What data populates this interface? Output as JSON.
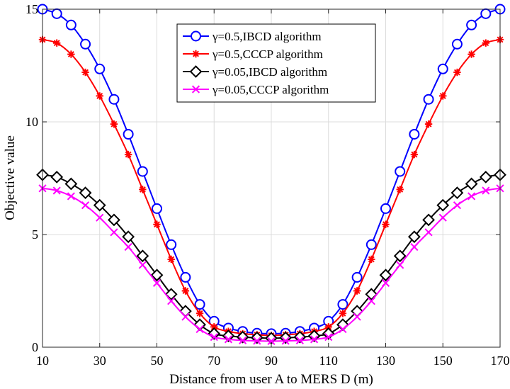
{
  "chart_data": {
    "type": "line",
    "title": "",
    "xlabel": "Distance from user A to MERS D (m)",
    "ylabel": "Objective value",
    "xlim": [
      10,
      170
    ],
    "ylim": [
      0,
      15
    ],
    "xticks": [
      10,
      30,
      50,
      70,
      90,
      110,
      130,
      150,
      170
    ],
    "yticks": [
      0,
      5,
      10,
      15
    ],
    "grid": true,
    "legend_position": "top-right",
    "x": [
      10,
      15,
      20,
      25,
      30,
      35,
      40,
      45,
      50,
      55,
      60,
      65,
      70,
      75,
      80,
      85,
      90,
      95,
      100,
      105,
      110,
      115,
      120,
      125,
      130,
      135,
      140,
      145,
      150,
      155,
      160,
      165,
      170
    ],
    "series": [
      {
        "name": "γ=0.5,IBCD algorithm",
        "color": "#0000ff",
        "marker": "circle",
        "values": [
          15.0,
          14.8,
          14.3,
          13.45,
          12.35,
          11.0,
          9.45,
          7.8,
          6.15,
          4.55,
          3.1,
          1.9,
          1.15,
          0.85,
          0.7,
          0.62,
          0.6,
          0.62,
          0.7,
          0.85,
          1.15,
          1.9,
          3.1,
          4.55,
          6.15,
          7.8,
          9.45,
          11.0,
          12.35,
          13.45,
          14.3,
          14.8,
          15.0
        ]
      },
      {
        "name": "γ=0.5,CCCP algorithm",
        "color": "#ff0000",
        "marker": "asterisk",
        "values": [
          13.65,
          13.5,
          13.0,
          12.2,
          11.15,
          9.9,
          8.55,
          7.0,
          5.45,
          3.9,
          2.5,
          1.5,
          0.9,
          0.7,
          0.6,
          0.55,
          0.52,
          0.55,
          0.6,
          0.7,
          0.9,
          1.5,
          2.5,
          3.9,
          5.45,
          7.0,
          8.55,
          9.9,
          11.15,
          12.2,
          13.0,
          13.5,
          13.65
        ]
      },
      {
        "name": "γ=0.05,IBCD algorithm",
        "color": "#000000",
        "marker": "diamond",
        "values": [
          7.65,
          7.55,
          7.25,
          6.85,
          6.3,
          5.65,
          4.9,
          4.05,
          3.2,
          2.35,
          1.6,
          1.0,
          0.6,
          0.5,
          0.45,
          0.42,
          0.4,
          0.42,
          0.45,
          0.5,
          0.6,
          1.0,
          1.6,
          2.35,
          3.2,
          4.05,
          4.9,
          5.65,
          6.3,
          6.85,
          7.25,
          7.55,
          7.65
        ]
      },
      {
        "name": "γ=0.05,CCCP algorithm",
        "color": "#ff00ff",
        "marker": "x",
        "values": [
          7.05,
          6.95,
          6.7,
          6.3,
          5.75,
          5.1,
          4.45,
          3.65,
          2.85,
          2.05,
          1.35,
          0.8,
          0.45,
          0.35,
          0.3,
          0.28,
          0.27,
          0.28,
          0.3,
          0.35,
          0.45,
          0.8,
          1.35,
          2.05,
          2.85,
          3.65,
          4.45,
          5.1,
          5.75,
          6.3,
          6.7,
          6.95,
          7.05
        ]
      }
    ]
  }
}
